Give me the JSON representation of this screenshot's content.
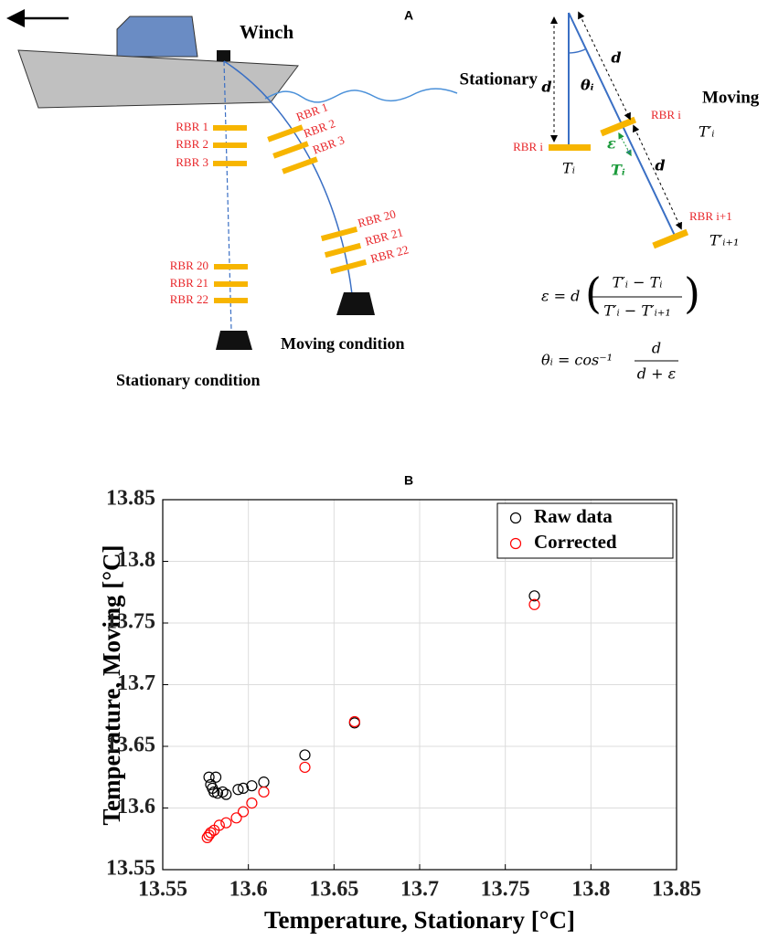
{
  "diagram": {
    "label": "A",
    "winch": "Winch",
    "stationary_sensors": [
      "RBR 1",
      "RBR 2",
      "RBR 3",
      "RBR 20",
      "RBR 21",
      "RBR 22"
    ],
    "moving_sensors": [
      "RBR 1",
      "RBR 2",
      "RBR 3",
      "RBR 20",
      "RBR 21",
      "RBR 22"
    ],
    "moving_condition": "Moving condition",
    "stationary_condition": "Stationary condition",
    "schematic": {
      "stationary": "Stationary",
      "moving": "Moving",
      "d_labels": [
        "d",
        "d",
        "d"
      ],
      "theta": "θᵢ",
      "rbr_i_left": "RBR i",
      "rbr_i_right": "RBR i",
      "rbr_i1": "RBR i+1",
      "t_i": "Tᵢ",
      "t_prime_i": "T′ᵢ",
      "t_prime_i1": "T′ᵢ₊₁",
      "epsilon": "ε",
      "t_i_green": "Tᵢ"
    },
    "equations": {
      "eps_lhs": "ε = d",
      "eps_num": "T′ᵢ − Tᵢ",
      "eps_den": "T′ᵢ − T′ᵢ₊₁",
      "theta_lhs": "θᵢ = cos⁻¹",
      "theta_num": "d",
      "theta_den": "d + ε"
    }
  },
  "chart_data": {
    "type": "scatter",
    "title": "B",
    "x_label": "Temperature, Stationary [°C]",
    "y_label": "Temperature, Moving [°C]",
    "xlim": [
      13.55,
      13.85
    ],
    "ylim": [
      13.55,
      13.85
    ],
    "xticks": [
      13.55,
      13.6,
      13.65,
      13.7,
      13.75,
      13.8,
      13.85
    ],
    "yticks": [
      13.55,
      13.6,
      13.65,
      13.7,
      13.75,
      13.8,
      13.85
    ],
    "grid": true,
    "legend": "top-right",
    "series": [
      {
        "name": "Raw data",
        "color": "#000000",
        "x": [
          13.577,
          13.578,
          13.579,
          13.58,
          13.581,
          13.582,
          13.585,
          13.587,
          13.594,
          13.597,
          13.602,
          13.609,
          13.633,
          13.662,
          13.767
        ],
        "values": [
          13.625,
          13.619,
          13.616,
          13.613,
          13.625,
          13.612,
          13.613,
          13.611,
          13.615,
          13.616,
          13.618,
          13.621,
          13.643,
          13.669,
          13.772
        ]
      },
      {
        "name": "Corrected",
        "color": "#ff0000",
        "x": [
          13.576,
          13.577,
          13.578,
          13.58,
          13.583,
          13.587,
          13.593,
          13.597,
          13.602,
          13.609,
          13.633,
          13.662,
          13.767
        ],
        "values": [
          13.576,
          13.578,
          13.58,
          13.582,
          13.586,
          13.588,
          13.592,
          13.597,
          13.604,
          13.613,
          13.633,
          13.67,
          13.765
        ]
      }
    ]
  }
}
